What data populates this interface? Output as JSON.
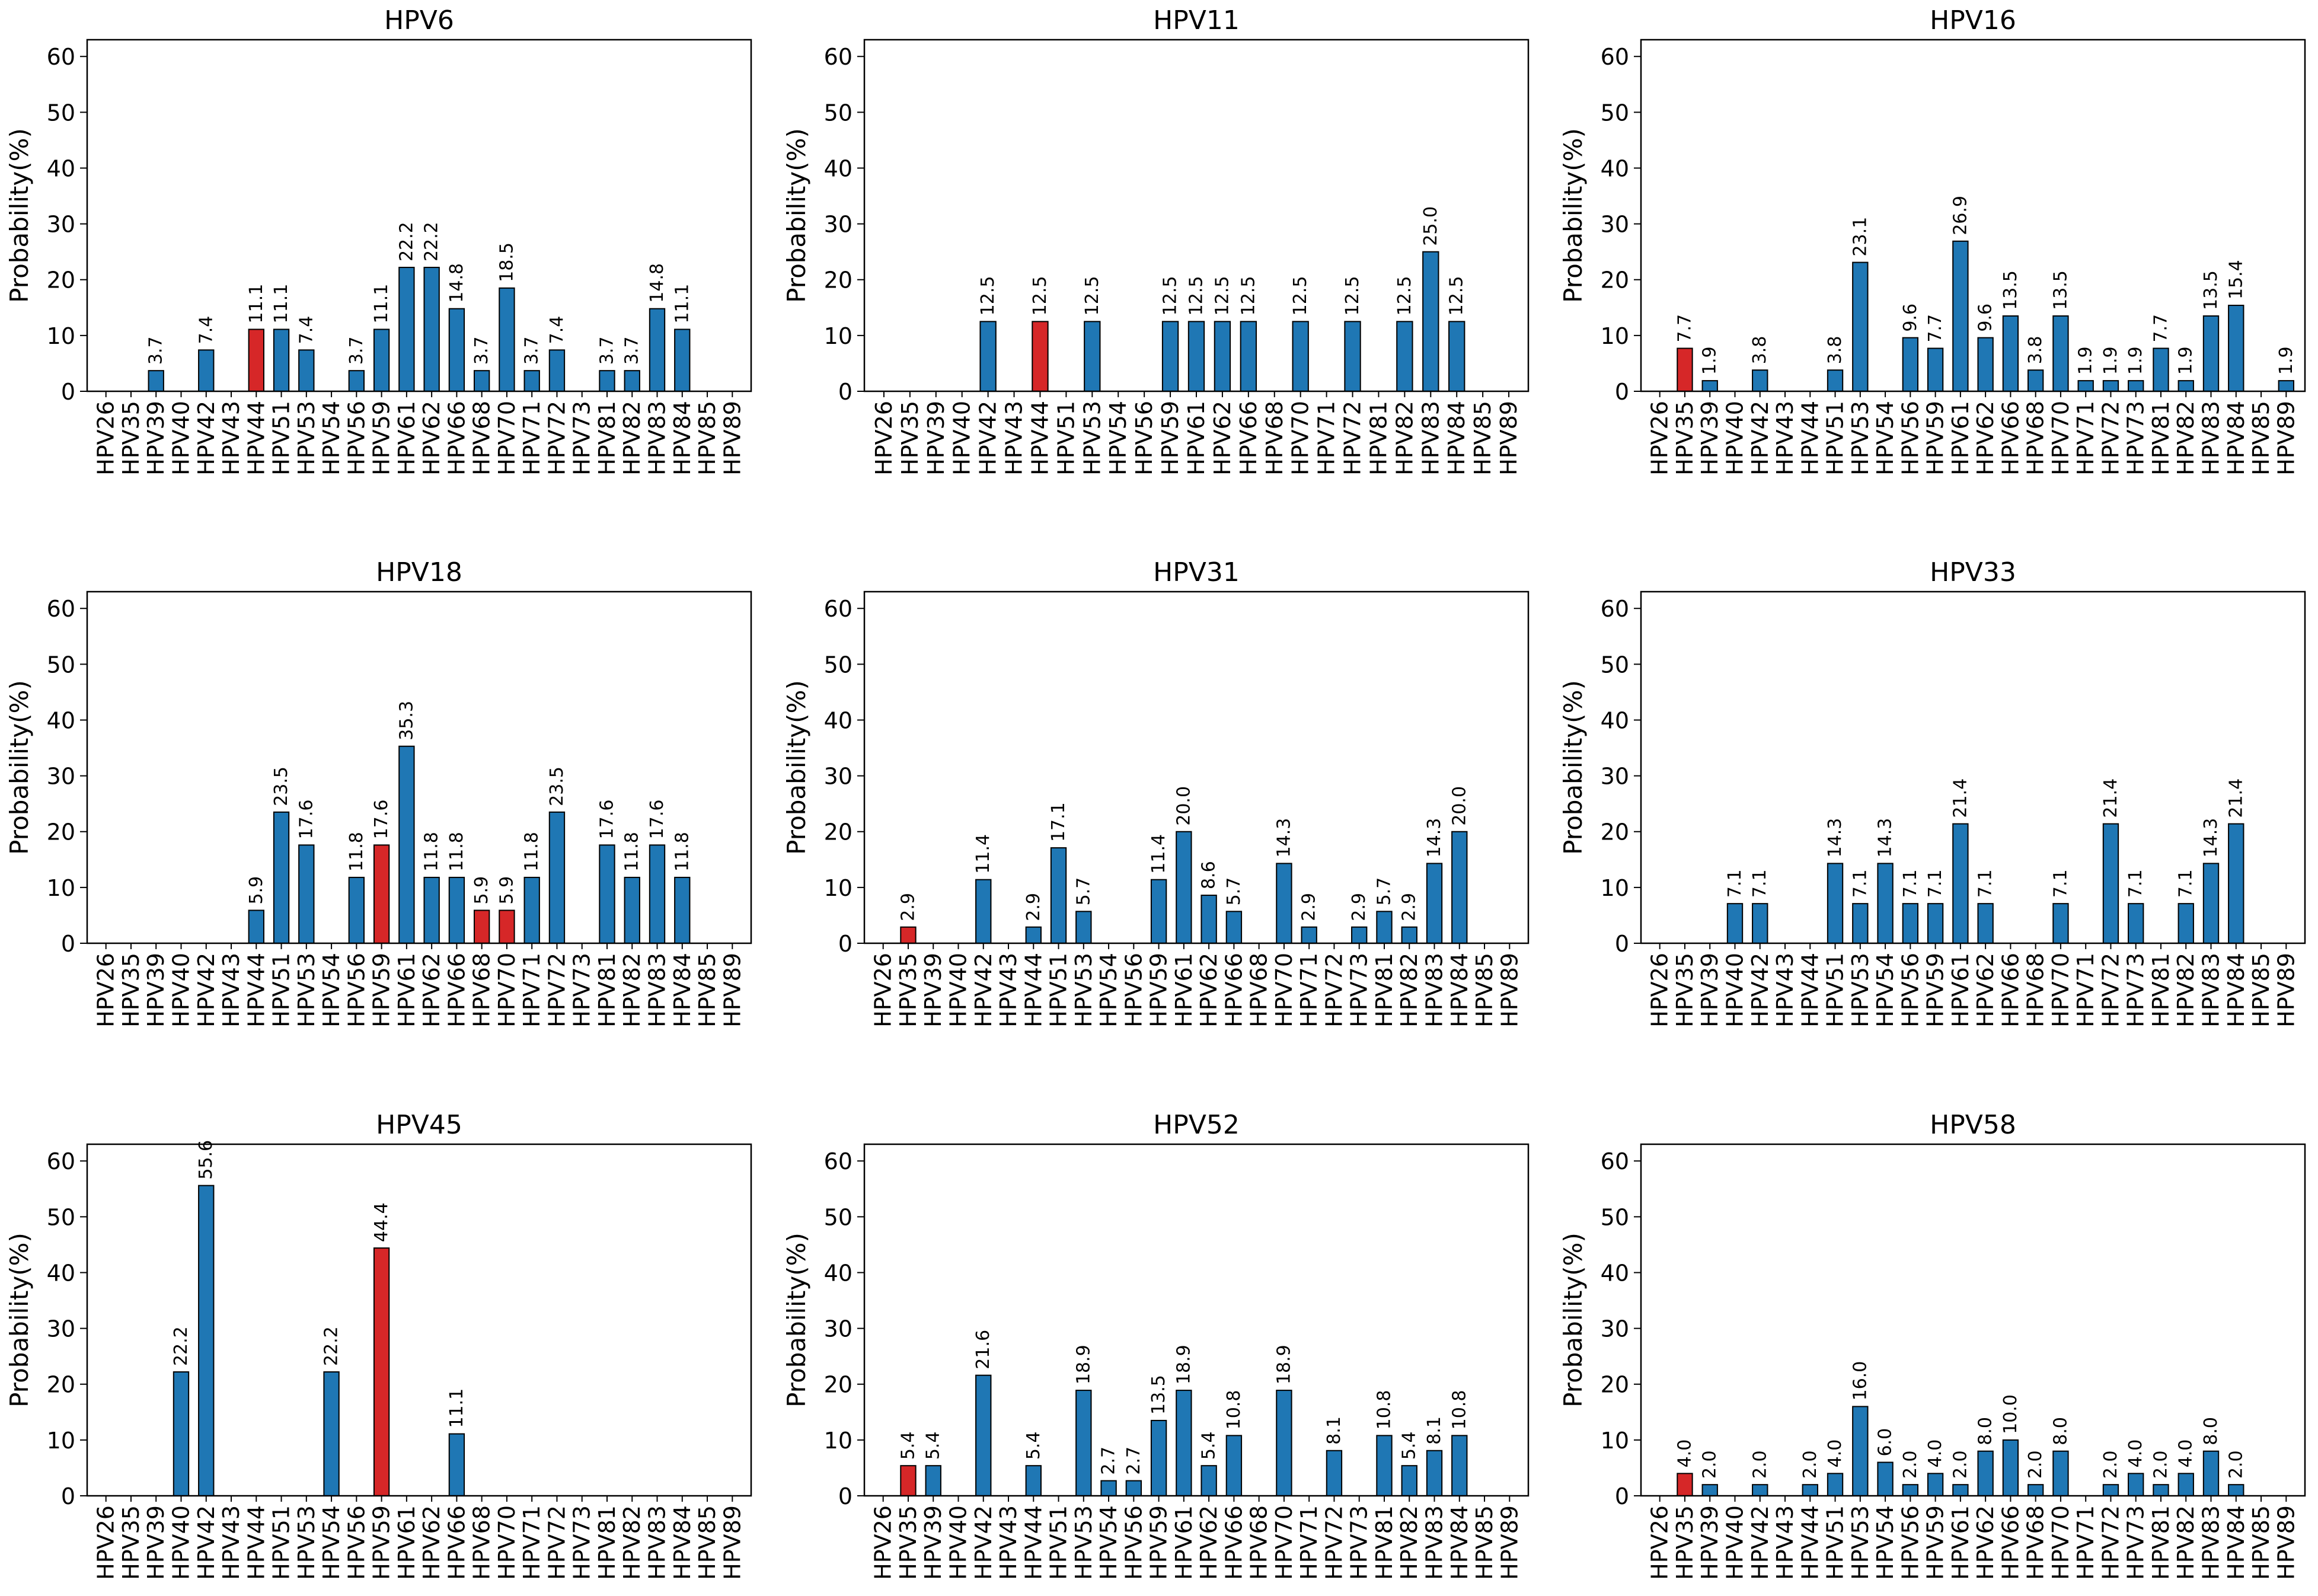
{
  "figure": {
    "ylabel": "Probability(%)"
  },
  "colors": {
    "bar": "#1f77b4",
    "highlight": "#d62728",
    "edge": "#000000"
  },
  "chart_data": [
    {
      "type": "bar",
      "title": "HPV6",
      "ylabel": "Probability(%)",
      "ylim": [
        0,
        63
      ],
      "yticks": [
        0,
        10,
        20,
        30,
        40,
        50,
        60
      ],
      "categories": [
        "HPV26",
        "HPV35",
        "HPV39",
        "HPV40",
        "HPV42",
        "HPV43",
        "HPV44",
        "HPV51",
        "HPV53",
        "HPV54",
        "HPV56",
        "HPV59",
        "HPV61",
        "HPV62",
        "HPV66",
        "HPV68",
        "HPV70",
        "HPV71",
        "HPV72",
        "HPV73",
        "HPV81",
        "HPV82",
        "HPV83",
        "HPV84",
        "HPV85",
        "HPV89"
      ],
      "values": [
        0,
        0,
        3.7,
        0,
        7.4,
        0,
        11.1,
        11.1,
        7.4,
        0,
        3.7,
        11.1,
        22.2,
        22.2,
        14.8,
        3.7,
        18.5,
        3.7,
        7.4,
        0,
        3.7,
        3.7,
        14.8,
        11.1,
        0,
        0
      ],
      "labels": [
        "",
        "",
        "3.7",
        "",
        "7.4",
        "",
        "11.1",
        "11.1",
        "7.4",
        "",
        "3.7",
        "11.1",
        "22.2",
        "22.2",
        "14.8",
        "3.7",
        "18.5",
        "3.7",
        "7.4",
        "",
        "3.7",
        "3.7",
        "14.8",
        "11.1",
        "",
        ""
      ],
      "highlight": [
        "HPV44"
      ]
    },
    {
      "type": "bar",
      "title": "HPV11",
      "ylabel": "Probability(%)",
      "ylim": [
        0,
        63
      ],
      "yticks": [
        0,
        10,
        20,
        30,
        40,
        50,
        60
      ],
      "categories": [
        "HPV26",
        "HPV35",
        "HPV39",
        "HPV40",
        "HPV42",
        "HPV43",
        "HPV44",
        "HPV51",
        "HPV53",
        "HPV54",
        "HPV56",
        "HPV59",
        "HPV61",
        "HPV62",
        "HPV66",
        "HPV68",
        "HPV70",
        "HPV71",
        "HPV72",
        "HPV81",
        "HPV82",
        "HPV83",
        "HPV84",
        "HPV85",
        "HPV89"
      ],
      "values": [
        0,
        0,
        0,
        0,
        12.5,
        0,
        12.5,
        0,
        12.5,
        0,
        0,
        12.5,
        12.5,
        12.5,
        12.5,
        0,
        12.5,
        0,
        12.5,
        0,
        12.5,
        25.0,
        12.5,
        0,
        0
      ],
      "labels": [
        "",
        "",
        "",
        "",
        "12.5",
        "",
        "12.5",
        "",
        "12.5",
        "",
        "",
        "12.5",
        "12.5",
        "12.5",
        "12.5",
        "",
        "12.5",
        "",
        "12.5",
        "",
        "12.5",
        "25.0",
        "12.5",
        "",
        ""
      ],
      "highlight": [
        "HPV44"
      ]
    },
    {
      "type": "bar",
      "title": "HPV16",
      "ylabel": "Probability(%)",
      "ylim": [
        0,
        63
      ],
      "yticks": [
        0,
        10,
        20,
        30,
        40,
        50,
        60
      ],
      "categories": [
        "HPV26",
        "HPV35",
        "HPV39",
        "HPV40",
        "HPV42",
        "HPV43",
        "HPV44",
        "HPV51",
        "HPV53",
        "HPV54",
        "HPV56",
        "HPV59",
        "HPV61",
        "HPV62",
        "HPV66",
        "HPV68",
        "HPV70",
        "HPV71",
        "HPV72",
        "HPV73",
        "HPV81",
        "HPV82",
        "HPV83",
        "HPV84",
        "HPV85",
        "HPV89"
      ],
      "values": [
        0,
        7.7,
        1.9,
        0,
        3.8,
        0,
        0,
        3.8,
        23.1,
        0,
        9.6,
        7.7,
        26.9,
        9.6,
        13.5,
        3.8,
        13.5,
        1.9,
        1.9,
        1.9,
        7.7,
        1.9,
        13.5,
        15.4,
        0,
        1.9
      ],
      "labels": [
        "",
        "7.7",
        "1.9",
        "",
        "3.8",
        "",
        "",
        "3.8",
        "23.1",
        "",
        "9.6",
        "7.7",
        "26.9",
        "9.6",
        "13.5",
        "3.8",
        "13.5",
        "1.9",
        "1.9",
        "1.9",
        "7.7",
        "1.9",
        "13.5",
        "15.4",
        "",
        "1.9"
      ],
      "highlight": [
        "HPV35"
      ]
    },
    {
      "type": "bar",
      "title": "HPV18",
      "ylabel": "Probability(%)",
      "ylim": [
        0,
        63
      ],
      "yticks": [
        0,
        10,
        20,
        30,
        40,
        50,
        60
      ],
      "categories": [
        "HPV26",
        "HPV35",
        "HPV39",
        "HPV40",
        "HPV42",
        "HPV43",
        "HPV44",
        "HPV51",
        "HPV53",
        "HPV54",
        "HPV56",
        "HPV59",
        "HPV61",
        "HPV62",
        "HPV66",
        "HPV68",
        "HPV70",
        "HPV71",
        "HPV72",
        "HPV73",
        "HPV81",
        "HPV82",
        "HPV83",
        "HPV84",
        "HPV85",
        "HPV89"
      ],
      "values": [
        0,
        0,
        0,
        0,
        0,
        0,
        5.9,
        23.5,
        17.6,
        0,
        11.8,
        17.6,
        35.3,
        11.8,
        11.8,
        5.9,
        5.9,
        11.8,
        23.5,
        0,
        17.6,
        11.8,
        17.6,
        11.8,
        0,
        0
      ],
      "labels": [
        "",
        "",
        "",
        "",
        "",
        "",
        "5.9",
        "23.5",
        "17.6",
        "",
        "11.8",
        "17.6",
        "35.3",
        "11.8",
        "11.8",
        "5.9",
        "5.9",
        "11.8",
        "23.5",
        "",
        "17.6",
        "11.8",
        "17.6",
        "11.8",
        "",
        ""
      ],
      "highlight": [
        "HPV59",
        "HPV68",
        "HPV70"
      ]
    },
    {
      "type": "bar",
      "title": "HPV31",
      "ylabel": "Probability(%)",
      "ylim": [
        0,
        63
      ],
      "yticks": [
        0,
        10,
        20,
        30,
        40,
        50,
        60
      ],
      "categories": [
        "HPV26",
        "HPV35",
        "HPV39",
        "HPV40",
        "HPV42",
        "HPV43",
        "HPV44",
        "HPV51",
        "HPV53",
        "HPV54",
        "HPV56",
        "HPV59",
        "HPV61",
        "HPV62",
        "HPV66",
        "HPV68",
        "HPV70",
        "HPV71",
        "HPV72",
        "HPV73",
        "HPV81",
        "HPV82",
        "HPV83",
        "HPV84",
        "HPV85",
        "HPV89"
      ],
      "values": [
        0,
        2.9,
        0,
        0,
        11.4,
        0,
        2.9,
        17.1,
        5.7,
        0,
        0,
        11.4,
        20.0,
        8.6,
        5.7,
        0,
        14.3,
        2.9,
        0,
        2.9,
        5.7,
        2.9,
        14.3,
        20.0,
        0,
        0
      ],
      "labels": [
        "",
        "2.9",
        "",
        "",
        "11.4",
        "",
        "2.9",
        "17.1",
        "5.7",
        "",
        "",
        "11.4",
        "20.0",
        "8.6",
        "5.7",
        "",
        "14.3",
        "2.9",
        "",
        "2.9",
        "5.7",
        "2.9",
        "14.3",
        "20.0",
        "",
        ""
      ],
      "highlight": [
        "HPV35"
      ]
    },
    {
      "type": "bar",
      "title": "HPV33",
      "ylabel": "Probability(%)",
      "ylim": [
        0,
        63
      ],
      "yticks": [
        0,
        10,
        20,
        30,
        40,
        50,
        60
      ],
      "categories": [
        "HPV26",
        "HPV35",
        "HPV39",
        "HPV40",
        "HPV42",
        "HPV43",
        "HPV44",
        "HPV51",
        "HPV53",
        "HPV54",
        "HPV56",
        "HPV59",
        "HPV61",
        "HPV62",
        "HPV66",
        "HPV68",
        "HPV70",
        "HPV71",
        "HPV72",
        "HPV73",
        "HPV81",
        "HPV82",
        "HPV83",
        "HPV84",
        "HPV85",
        "HPV89"
      ],
      "values": [
        0,
        0,
        0,
        7.1,
        7.1,
        0,
        0,
        14.3,
        7.1,
        14.3,
        7.1,
        7.1,
        21.4,
        7.1,
        0,
        0,
        7.1,
        0,
        21.4,
        7.1,
        0,
        7.1,
        14.3,
        21.4,
        0,
        0
      ],
      "labels": [
        "",
        "",
        "",
        "7.1",
        "7.1",
        "",
        "",
        "14.3",
        "7.1",
        "14.3",
        "7.1",
        "7.1",
        "21.4",
        "7.1",
        "",
        "",
        "7.1",
        "",
        "21.4",
        "7.1",
        "",
        "7.1",
        "14.3",
        "21.4",
        "",
        ""
      ],
      "highlight": []
    },
    {
      "type": "bar",
      "title": "HPV45",
      "ylabel": "Probability(%)",
      "ylim": [
        0,
        63
      ],
      "yticks": [
        0,
        10,
        20,
        30,
        40,
        50,
        60
      ],
      "categories": [
        "HPV26",
        "HPV35",
        "HPV39",
        "HPV40",
        "HPV42",
        "HPV43",
        "HPV44",
        "HPV51",
        "HPV53",
        "HPV54",
        "HPV56",
        "HPV59",
        "HPV61",
        "HPV62",
        "HPV66",
        "HPV68",
        "HPV70",
        "HPV71",
        "HPV72",
        "HPV73",
        "HPV81",
        "HPV82",
        "HPV83",
        "HPV84",
        "HPV85",
        "HPV89"
      ],
      "values": [
        0,
        0,
        0,
        22.2,
        55.6,
        0,
        0,
        0,
        0,
        22.2,
        0,
        44.4,
        0,
        0,
        11.1,
        0,
        0,
        0,
        0,
        0,
        0,
        0,
        0,
        0,
        0,
        0
      ],
      "labels": [
        "",
        "",
        "",
        "22.2",
        "55.6",
        "",
        "",
        "",
        "",
        "22.2",
        "",
        "44.4",
        "",
        "",
        "11.1",
        "",
        "",
        "",
        "",
        "",
        "",
        "",
        "",
        "",
        "",
        ""
      ],
      "highlight": [
        "HPV59"
      ]
    },
    {
      "type": "bar",
      "title": "HPV52",
      "ylabel": "Probability(%)",
      "ylim": [
        0,
        63
      ],
      "yticks": [
        0,
        10,
        20,
        30,
        40,
        50,
        60
      ],
      "categories": [
        "HPV26",
        "HPV35",
        "HPV39",
        "HPV40",
        "HPV42",
        "HPV43",
        "HPV44",
        "HPV51",
        "HPV53",
        "HPV54",
        "HPV56",
        "HPV59",
        "HPV61",
        "HPV62",
        "HPV66",
        "HPV68",
        "HPV70",
        "HPV71",
        "HPV72",
        "HPV73",
        "HPV81",
        "HPV82",
        "HPV83",
        "HPV84",
        "HPV85",
        "HPV89"
      ],
      "values": [
        0,
        5.4,
        5.4,
        0,
        21.6,
        0,
        5.4,
        0,
        18.9,
        2.7,
        2.7,
        13.5,
        18.9,
        5.4,
        10.8,
        0,
        18.9,
        0,
        8.1,
        0,
        10.8,
        5.4,
        8.1,
        10.8,
        0,
        0
      ],
      "labels": [
        "",
        "5.4",
        "5.4",
        "",
        "21.6",
        "",
        "5.4",
        "",
        "18.9",
        "2.7",
        "2.7",
        "13.5",
        "18.9",
        "5.4",
        "10.8",
        "",
        "18.9",
        "",
        "8.1",
        "",
        "10.8",
        "5.4",
        "8.1",
        "10.8",
        "",
        ""
      ],
      "highlight": [
        "HPV35"
      ]
    },
    {
      "type": "bar",
      "title": "HPV58",
      "ylabel": "Probability(%)",
      "ylim": [
        0,
        63
      ],
      "yticks": [
        0,
        10,
        20,
        30,
        40,
        50,
        60
      ],
      "categories": [
        "HPV26",
        "HPV35",
        "HPV39",
        "HPV40",
        "HPV42",
        "HPV43",
        "HPV44",
        "HPV51",
        "HPV53",
        "HPV54",
        "HPV56",
        "HPV59",
        "HPV61",
        "HPV62",
        "HPV66",
        "HPV68",
        "HPV70",
        "HPV71",
        "HPV72",
        "HPV73",
        "HPV81",
        "HPV82",
        "HPV83",
        "HPV84",
        "HPV85",
        "HPV89"
      ],
      "values": [
        0,
        4.0,
        2.0,
        0,
        2.0,
        0,
        2.0,
        4.0,
        16.0,
        6.0,
        2.0,
        4.0,
        2.0,
        8.0,
        10.0,
        2.0,
        8.0,
        0,
        2.0,
        4.0,
        2.0,
        4.0,
        8.0,
        2.0,
        0,
        0
      ],
      "labels": [
        "",
        "4.0",
        "2.0",
        "",
        "2.0",
        "",
        "2.0",
        "4.0",
        "16.0",
        "6.0",
        "2.0",
        "4.0",
        "2.0",
        "8.0",
        "10.0",
        "2.0",
        "8.0",
        "",
        "2.0",
        "4.0",
        "2.0",
        "4.0",
        "8.0",
        "2.0",
        "",
        ""
      ],
      "highlight": [
        "HPV35"
      ]
    }
  ]
}
